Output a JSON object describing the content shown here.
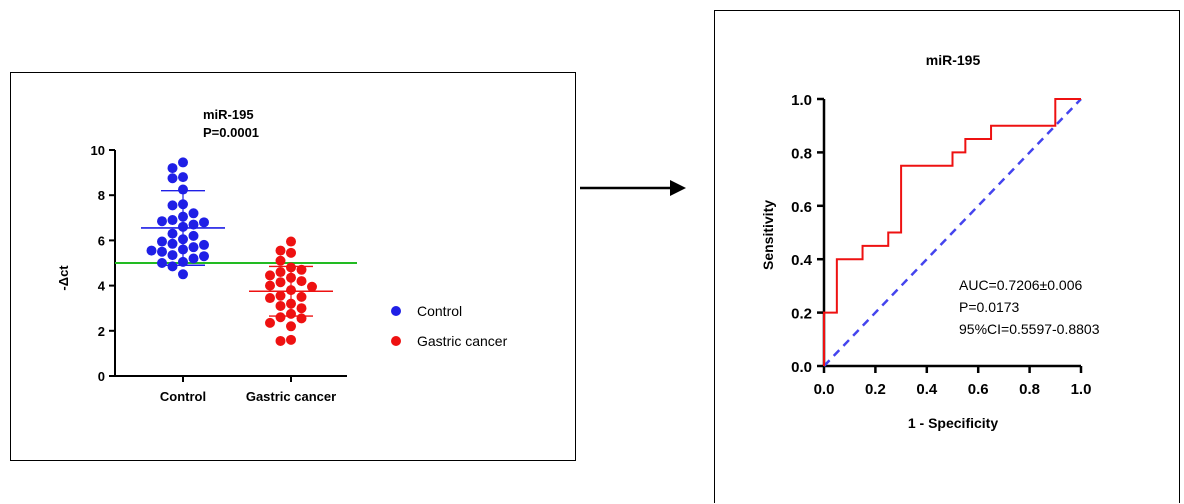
{
  "colors": {
    "control": "#1f1fe6",
    "cancer": "#ee1111",
    "cutoff": "#22bb22",
    "roc": "#ee1111",
    "diagonal": "#4444ee"
  },
  "chart_data": [
    {
      "type": "scatter",
      "title": "miR-195",
      "subtitle": "P=0.0001",
      "xlabel": "",
      "ylabel": "-Δct",
      "ylim": [
        0,
        10
      ],
      "yticks": [
        "0",
        "2",
        "4",
        "6",
        "8",
        "10"
      ],
      "categories": [
        "Control",
        "Gastric cancer"
      ],
      "legend": [
        "Control",
        "Gastric cancer"
      ],
      "legend_position": "right",
      "cutoff_line": 5.0,
      "series": [
        {
          "name": "Control",
          "mean": 6.55,
          "sd": 1.65,
          "values": [
            9.45,
            9.2,
            8.8,
            8.75,
            8.25,
            7.6,
            7.55,
            7.2,
            7.05,
            6.9,
            6.85,
            6.8,
            6.7,
            6.6,
            6.3,
            6.2,
            6.05,
            5.95,
            5.85,
            5.8,
            5.7,
            5.6,
            5.55,
            5.5,
            5.35,
            5.3,
            5.2,
            5.05,
            5.0,
            4.85,
            4.5
          ]
        },
        {
          "name": "Gastric cancer",
          "mean": 3.75,
          "sd": 1.1,
          "values": [
            5.95,
            5.55,
            5.45,
            5.1,
            4.8,
            4.7,
            4.6,
            4.45,
            4.35,
            4.2,
            4.15,
            4.0,
            3.95,
            3.8,
            3.55,
            3.5,
            3.45,
            3.2,
            3.1,
            3.0,
            2.75,
            2.6,
            2.55,
            2.35,
            2.2,
            1.6,
            1.55
          ]
        }
      ]
    },
    {
      "type": "line",
      "title": "miR-195",
      "xlabel": "1 - Specificity",
      "ylabel": "Sensitivity",
      "xlim": [
        0,
        1
      ],
      "ylim": [
        0,
        1
      ],
      "xticks": [
        "0.0",
        "0.2",
        "0.4",
        "0.6",
        "0.8",
        "1.0"
      ],
      "yticks": [
        "0.0",
        "0.2",
        "0.4",
        "0.6",
        "0.8",
        "1.0"
      ],
      "roc": [
        [
          0,
          0
        ],
        [
          0,
          0.2
        ],
        [
          0.05,
          0.2
        ],
        [
          0.05,
          0.4
        ],
        [
          0.15,
          0.4
        ],
        [
          0.15,
          0.45
        ],
        [
          0.25,
          0.45
        ],
        [
          0.25,
          0.5
        ],
        [
          0.3,
          0.5
        ],
        [
          0.3,
          0.75
        ],
        [
          0.5,
          0.75
        ],
        [
          0.5,
          0.8
        ],
        [
          0.55,
          0.8
        ],
        [
          0.55,
          0.85
        ],
        [
          0.65,
          0.85
        ],
        [
          0.65,
          0.9
        ],
        [
          0.9,
          0.9
        ],
        [
          0.9,
          1.0
        ],
        [
          1.0,
          1.0
        ]
      ],
      "diagonal": [
        [
          0,
          0
        ],
        [
          1,
          1
        ]
      ],
      "annotations": [
        "AUC=0.7206±0.006",
        "P=0.0173",
        "95%CI=0.5597-0.8803"
      ]
    }
  ]
}
